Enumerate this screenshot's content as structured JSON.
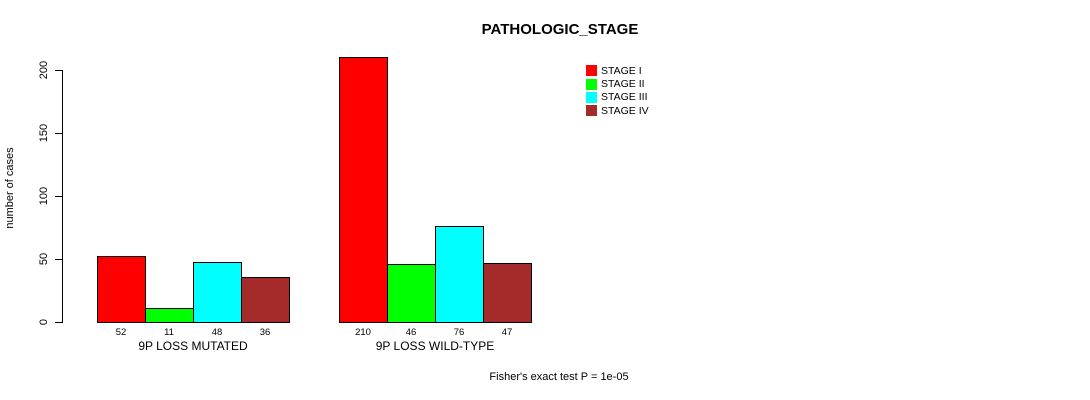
{
  "chart_data": {
    "type": "bar",
    "title": "PATHOLOGIC_STAGE",
    "ylabel": "number of cases",
    "xlabel": "",
    "ylim": [
      0,
      200
    ],
    "yticks": [
      0,
      50,
      100,
      150,
      200
    ],
    "grid": false,
    "legend_position": "top-right",
    "categories": [
      "9P LOSS MUTATED",
      "9P LOSS WILD-TYPE"
    ],
    "series": [
      {
        "name": "STAGE I",
        "color": "#FF0000",
        "values": [
          52,
          210
        ]
      },
      {
        "name": "STAGE II",
        "color": "#00FF00",
        "values": [
          11,
          46
        ]
      },
      {
        "name": "STAGE III",
        "color": "#00FFFF",
        "values": [
          48,
          76
        ]
      },
      {
        "name": "STAGE IV",
        "color": "#A52A2A",
        "values": [
          36,
          47
        ]
      }
    ],
    "bar_value_labels": {
      "9P LOSS MUTATED": [
        52,
        11,
        48,
        36
      ],
      "9P LOSS WILD-TYPE": [
        210,
        46,
        76,
        47
      ]
    },
    "footnote": "Fisher's exact test P = 1e-05"
  }
}
